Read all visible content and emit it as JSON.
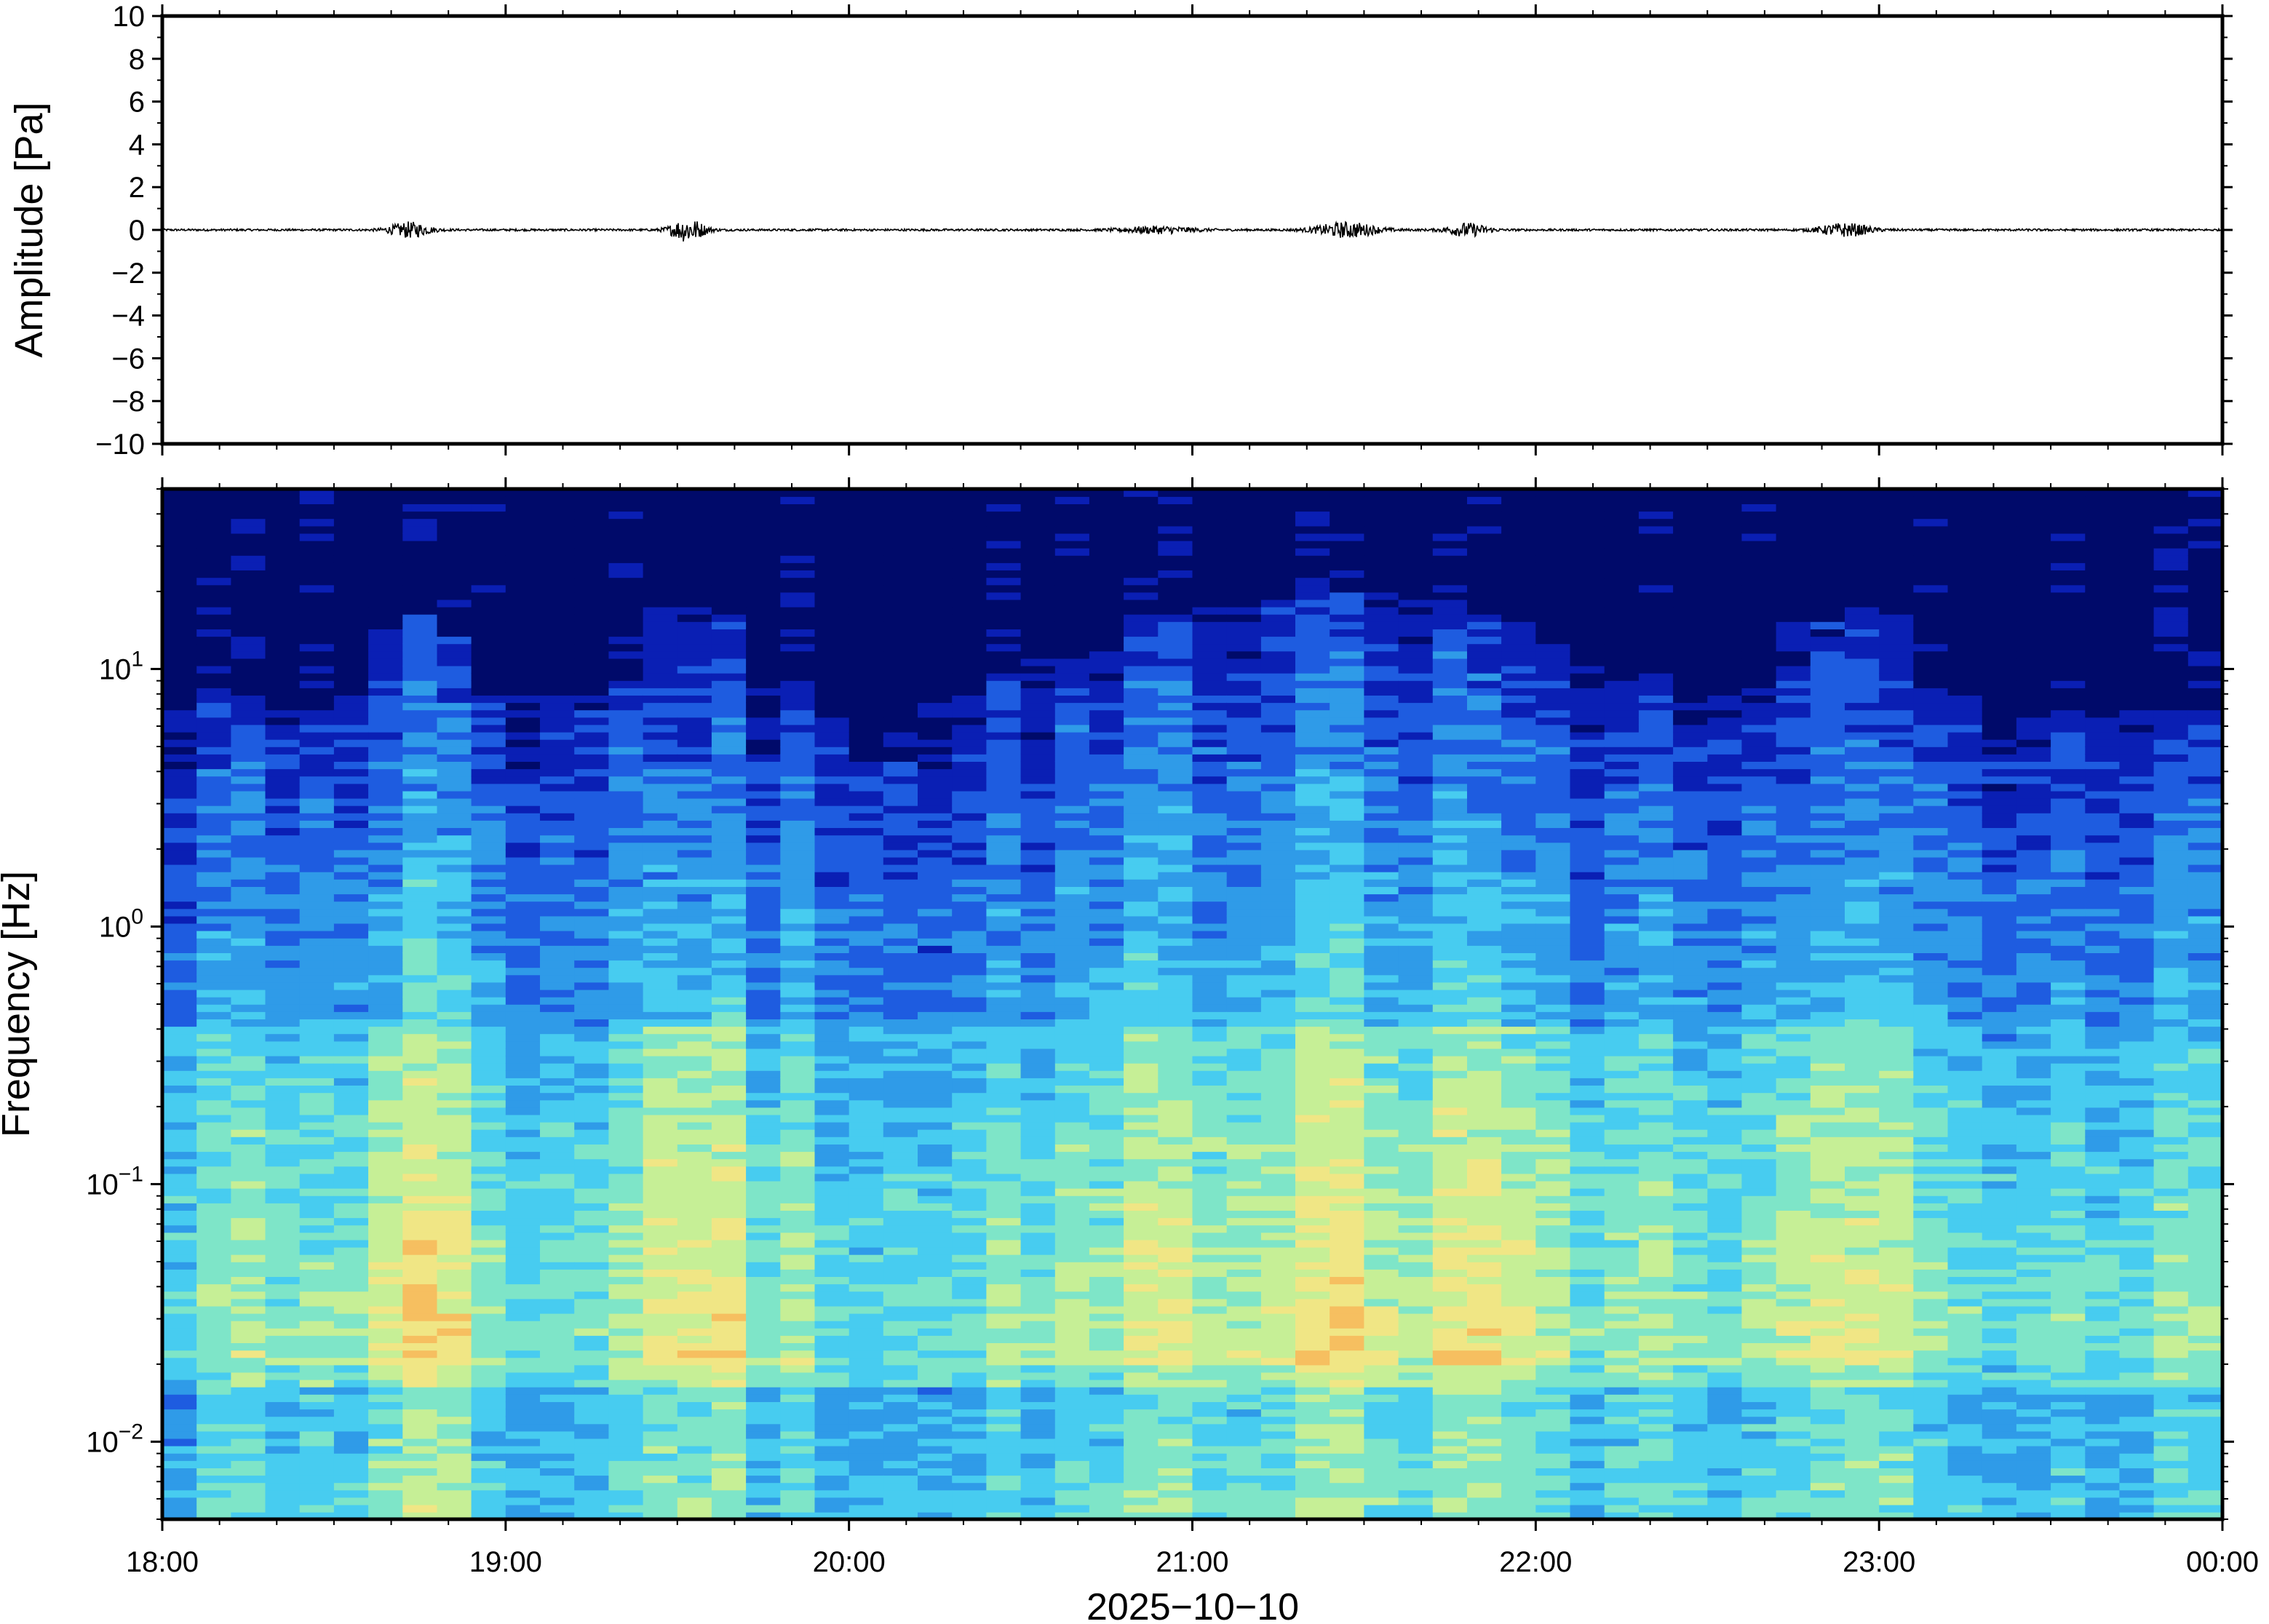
{
  "chart_data": [
    {
      "type": "line",
      "panel": "waveform",
      "ylabel": "Amplitude [Pa]",
      "ylim": [
        -10,
        10
      ],
      "yticks": [
        -10,
        -8,
        -6,
        -4,
        -2,
        0,
        2,
        4,
        6,
        8,
        10
      ],
      "ytick_labels": [
        "−10",
        "−8",
        "−6",
        "−4",
        "−2",
        "0",
        "2",
        "4",
        "6",
        "8",
        "10"
      ],
      "xlim_hours": [
        18,
        24
      ],
      "baseline": 0,
      "noise_amplitude": 0.05,
      "bursts": [
        {
          "t": 18.72,
          "w": 0.12,
          "amp": 0.35
        },
        {
          "t": 19.53,
          "w": 0.1,
          "amp": 0.55
        },
        {
          "t": 20.9,
          "w": 0.22,
          "amp": 0.15
        },
        {
          "t": 21.45,
          "w": 0.18,
          "amp": 0.35
        },
        {
          "t": 21.8,
          "w": 0.12,
          "amp": 0.3
        },
        {
          "t": 22.9,
          "w": 0.15,
          "amp": 0.3
        }
      ],
      "grid": false,
      "line_color": "#000000"
    },
    {
      "type": "heatmap",
      "panel": "spectrogram",
      "ylabel": "Frequency [Hz]",
      "yscale": "log",
      "ylim": [
        0.005,
        50
      ],
      "yticks": [
        0.01,
        0.1,
        1,
        10
      ],
      "ytick_labels": [
        {
          "base": "10",
          "exp": "−2"
        },
        {
          "base": "10",
          "exp": "−1"
        },
        {
          "base": "10",
          "exp": "0"
        },
        {
          "base": "10",
          "exp": "1"
        }
      ],
      "xlabel": "2025−10−10",
      "xticks_hours": [
        18,
        19,
        20,
        21,
        22,
        23,
        24
      ],
      "xtick_labels": [
        "18:00",
        "19:00",
        "20:00",
        "21:00",
        "22:00",
        "23:00",
        "00:00"
      ],
      "time_columns": 60,
      "colormap": [
        "#000a6a",
        "#0a1fb4",
        "#1e5ce0",
        "#2f9be8",
        "#47ccf0",
        "#7ee5c8",
        "#c6ef96",
        "#f0e685",
        "#f6bf60",
        "#f08a40"
      ],
      "columns": [
        {
          "t": 18.05,
          "level": 0.45,
          "top_hz": 9
        },
        {
          "t": 18.25,
          "level": 0.55,
          "top_hz": 8
        },
        {
          "t": 18.45,
          "level": 0.45,
          "top_hz": 7
        },
        {
          "t": 18.72,
          "level": 0.95,
          "top_hz": 16
        },
        {
          "t": 19.05,
          "level": 0.45,
          "top_hz": 8
        },
        {
          "t": 19.25,
          "level": 0.4,
          "top_hz": 8
        },
        {
          "t": 19.53,
          "level": 1.0,
          "top_hz": 18
        },
        {
          "t": 19.85,
          "level": 0.55,
          "top_hz": 9
        },
        {
          "t": 20.05,
          "level": 0.3,
          "top_hz": 5
        },
        {
          "t": 20.3,
          "level": 0.5,
          "top_hz": 8
        },
        {
          "t": 20.6,
          "level": 0.55,
          "top_hz": 11
        },
        {
          "t": 20.9,
          "level": 0.7,
          "top_hz": 16
        },
        {
          "t": 21.2,
          "level": 0.7,
          "top_hz": 18
        },
        {
          "t": 21.45,
          "level": 0.9,
          "top_hz": 20
        },
        {
          "t": 21.65,
          "level": 0.75,
          "top_hz": 19
        },
        {
          "t": 21.9,
          "level": 0.85,
          "top_hz": 16
        },
        {
          "t": 22.2,
          "level": 0.55,
          "top_hz": 10
        },
        {
          "t": 22.5,
          "level": 0.5,
          "top_hz": 8
        },
        {
          "t": 22.9,
          "level": 0.85,
          "top_hz": 17
        },
        {
          "t": 23.3,
          "level": 0.45,
          "top_hz": 8
        },
        {
          "t": 23.7,
          "level": 0.4,
          "top_hz": 7
        },
        {
          "t": 23.95,
          "level": 0.45,
          "top_hz": 7
        }
      ],
      "grid": false
    }
  ]
}
